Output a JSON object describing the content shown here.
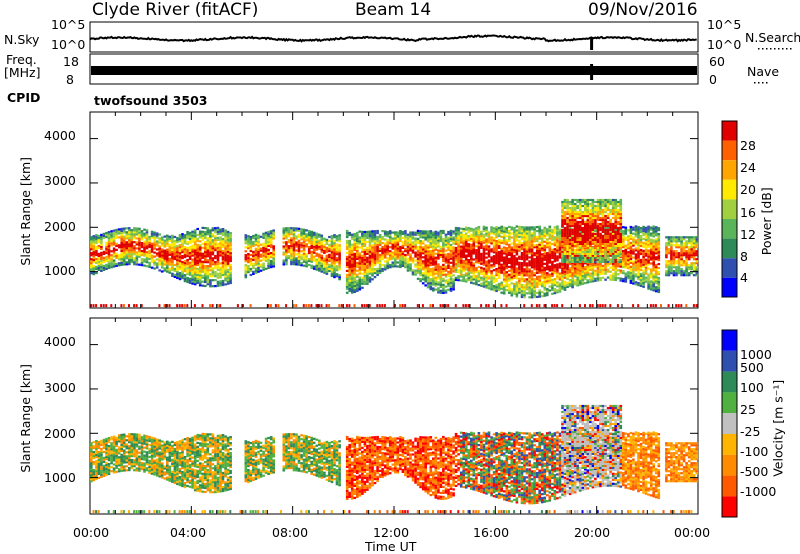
{
  "header": {
    "station": "Clyde River (fitACF)",
    "beam": "Beam 14",
    "date": "09/Nov/2016"
  },
  "top_panels": {
    "nsky_label": "N.Sky",
    "nsky_ticks": [
      "10^5",
      "10^0"
    ],
    "nsearch_label": "N.Search",
    "nsearch_ticks": [
      "10^5",
      "10^0"
    ],
    "freq_label": "Freq.",
    "freq_unit": "[MHz]",
    "freq_ticks": [
      "18",
      "8"
    ],
    "nave_label": "Nave",
    "nave_ticks": [
      "60",
      "0"
    ],
    "cpid_label": "CPID",
    "cpid_value": "twofsound 3503"
  },
  "time_axis": {
    "ticks": [
      "00:00",
      "04:00",
      "08:00",
      "12:00",
      "16:00",
      "20:00",
      "00:00"
    ],
    "label": "Time UT"
  },
  "colors": {
    "power": [
      "#0000ff",
      "#3050b0",
      "#2e8b57",
      "#5ab45a",
      "#a0d040",
      "#ffea00",
      "#ffa500",
      "#ff6000",
      "#e00000"
    ],
    "velocity": [
      "#ff0000",
      "#ff5a00",
      "#ff8c00",
      "#ffb400",
      "#c0c0c0",
      "#50b040",
      "#2e8b57",
      "#3050b0",
      "#0000ff"
    ]
  },
  "chart_data": [
    {
      "type": "heatmap",
      "name": "Power",
      "ylabel": "Slant Range [km]",
      "yticks": [
        1000,
        2000,
        3000,
        4000
      ],
      "ylim": [
        180,
        4600
      ],
      "xlim": [
        "00:00",
        "24:00"
      ],
      "colorbar_label": "Power [dB]",
      "colorbar_ticks": [
        "4",
        "8",
        "12",
        "16",
        "20",
        "24",
        "28"
      ],
      "clim": [
        0,
        30
      ]
    },
    {
      "type": "heatmap",
      "name": "Velocity",
      "ylabel": "Slant Range [km]",
      "yticks": [
        1000,
        2000,
        3000,
        4000
      ],
      "ylim": [
        180,
        4600
      ],
      "xlim": [
        "00:00",
        "24:00"
      ],
      "colorbar_label": "Velocity [m s⁻¹]",
      "colorbar_ticks": [
        "1000",
        "500",
        "100",
        "25",
        "-25",
        "-100",
        "-500",
        "-1000"
      ],
      "clim": [
        -1000,
        1000
      ]
    }
  ]
}
